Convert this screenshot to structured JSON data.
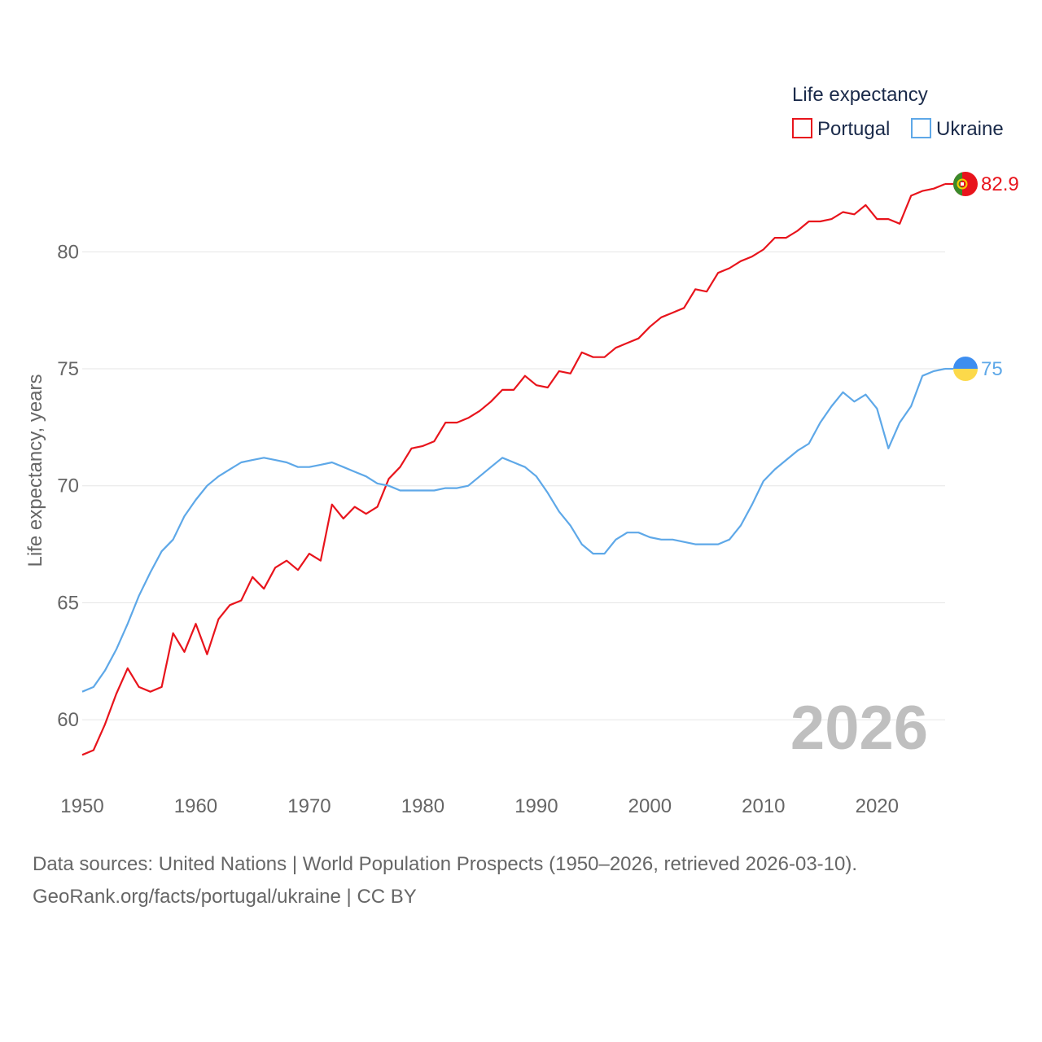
{
  "chart_data": {
    "type": "line",
    "legend_title": "Life expectancy",
    "ylabel": "Life expectancy, years",
    "xlabel": "",
    "xlim": [
      1950,
      2026
    ],
    "ylim": [
      57.5,
      84.5
    ],
    "x_ticks": [
      1950,
      1960,
      1970,
      1980,
      1990,
      2000,
      2010,
      2020
    ],
    "y_ticks": [
      60,
      65,
      70,
      75,
      80
    ],
    "year_label": "2026",
    "legend_position": "top-right",
    "x": [
      1950,
      1951,
      1952,
      1953,
      1954,
      1955,
      1956,
      1957,
      1958,
      1959,
      1960,
      1961,
      1962,
      1963,
      1964,
      1965,
      1966,
      1967,
      1968,
      1969,
      1970,
      1971,
      1972,
      1973,
      1974,
      1975,
      1976,
      1977,
      1978,
      1979,
      1980,
      1981,
      1982,
      1983,
      1984,
      1985,
      1986,
      1987,
      1988,
      1989,
      1990,
      1991,
      1992,
      1993,
      1994,
      1995,
      1996,
      1997,
      1998,
      1999,
      2000,
      2001,
      2002,
      2003,
      2004,
      2005,
      2006,
      2007,
      2008,
      2009,
      2010,
      2011,
      2012,
      2013,
      2014,
      2015,
      2016,
      2017,
      2018,
      2019,
      2020,
      2021,
      2022,
      2023,
      2024,
      2025,
      2026
    ],
    "series": [
      {
        "name": "Portugal",
        "color": "#e8141c",
        "end_label": "82.9",
        "values": [
          58.5,
          58.7,
          59.8,
          61.1,
          62.2,
          61.4,
          61.2,
          61.4,
          63.7,
          62.9,
          64.1,
          62.8,
          64.3,
          64.9,
          65.1,
          66.1,
          65.6,
          66.5,
          66.8,
          66.4,
          67.1,
          66.8,
          69.2,
          68.6,
          69.1,
          68.8,
          69.1,
          70.3,
          70.8,
          71.6,
          71.7,
          71.9,
          72.7,
          72.7,
          72.9,
          73.2,
          73.6,
          74.1,
          74.1,
          74.7,
          74.3,
          74.2,
          74.9,
          74.8,
          75.7,
          75.5,
          75.5,
          75.9,
          76.1,
          76.3,
          76.8,
          77.2,
          77.4,
          77.6,
          78.4,
          78.3,
          79.1,
          79.3,
          79.6,
          79.8,
          80.1,
          80.6,
          80.6,
          80.9,
          81.3,
          81.3,
          81.4,
          81.7,
          81.6,
          82.0,
          81.4,
          81.4,
          81.2,
          82.4,
          82.6,
          82.7,
          82.9
        ]
      },
      {
        "name": "Ukraine",
        "color": "#5ea8e8",
        "end_label": "75",
        "values": [
          61.2,
          61.4,
          62.1,
          63.0,
          64.1,
          65.3,
          66.3,
          67.2,
          67.7,
          68.7,
          69.4,
          70.0,
          70.4,
          70.7,
          71.0,
          71.1,
          71.2,
          71.1,
          71.0,
          70.8,
          70.8,
          70.9,
          71.0,
          70.8,
          70.6,
          70.4,
          70.1,
          70.0,
          69.8,
          69.8,
          69.8,
          69.8,
          69.9,
          69.9,
          70.0,
          70.4,
          70.8,
          71.2,
          71.0,
          70.8,
          70.4,
          69.7,
          68.9,
          68.3,
          67.5,
          67.1,
          67.1,
          67.7,
          68.0,
          68.0,
          67.8,
          67.7,
          67.7,
          67.6,
          67.5,
          67.5,
          67.5,
          67.7,
          68.3,
          69.2,
          70.2,
          70.7,
          71.1,
          71.5,
          71.8,
          72.7,
          73.4,
          74.0,
          73.6,
          73.9,
          73.3,
          71.6,
          72.7,
          73.4,
          74.7,
          74.9,
          75.0
        ]
      }
    ]
  },
  "sources": {
    "line1": "Data sources: United Nations | World Population Prospects (1950–2026, retrieved 2026-03-10).",
    "line2": "GeoRank.org/facts/portugal/ukraine | CC BY"
  },
  "colors": {
    "axis_text": "#666666",
    "legend_text": "#1a2a4a",
    "grid": "#e6e6e6",
    "year_label": "#bfbfbf",
    "flag_pt_green": "#3a8a2a",
    "flag_pt_red": "#e8141c",
    "flag_pt_yellow": "#f5d000",
    "flag_ua_blue": "#3d8ef0",
    "flag_ua_yellow": "#fcd94a"
  }
}
